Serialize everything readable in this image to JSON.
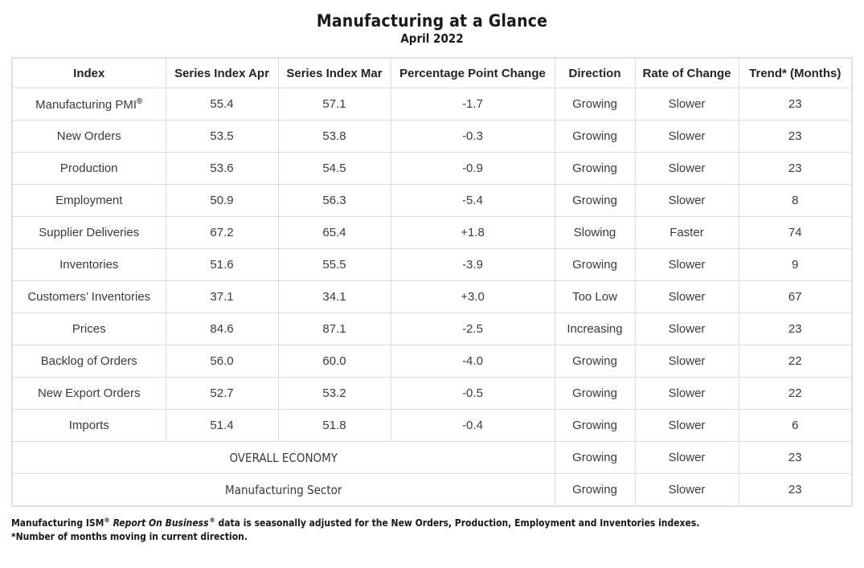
{
  "title": "Manufacturing at a Glance",
  "subtitle": "April 2022",
  "table": {
    "columns": [
      "Index",
      "Series Index Apr",
      "Series Index Mar",
      "Percentage Point Change",
      "Direction",
      "Rate of Change",
      "Trend* (Months)"
    ],
    "rows": [
      {
        "label": "Manufacturing PMI",
        "suffix": "®",
        "apr": "55.4",
        "mar": "57.1",
        "change": "-1.7",
        "direction": "Growing",
        "rate": "Slower",
        "trend": "23"
      },
      {
        "label": "New Orders",
        "suffix": "",
        "apr": "53.5",
        "mar": "53.8",
        "change": "-0.3",
        "direction": "Growing",
        "rate": "Slower",
        "trend": "23"
      },
      {
        "label": "Production",
        "suffix": "",
        "apr": "53.6",
        "mar": "54.5",
        "change": "-0.9",
        "direction": "Growing",
        "rate": "Slower",
        "trend": "23"
      },
      {
        "label": "Employment",
        "suffix": "",
        "apr": "50.9",
        "mar": "56.3",
        "change": "-5.4",
        "direction": "Growing",
        "rate": "Slower",
        "trend": "8"
      },
      {
        "label": "Supplier Deliveries",
        "suffix": "",
        "apr": "67.2",
        "mar": "65.4",
        "change": "+1.8",
        "direction": "Slowing",
        "rate": "Faster",
        "trend": "74"
      },
      {
        "label": "Inventories",
        "suffix": "",
        "apr": "51.6",
        "mar": "55.5",
        "change": "-3.9",
        "direction": "Growing",
        "rate": "Slower",
        "trend": "9"
      },
      {
        "label": "Customers’ Inventories",
        "suffix": "",
        "apr": "37.1",
        "mar": "34.1",
        "change": "+3.0",
        "direction": "Too Low",
        "rate": "Slower",
        "trend": "67"
      },
      {
        "label": "Prices",
        "suffix": "",
        "apr": "84.6",
        "mar": "87.1",
        "change": "-2.5",
        "direction": "Increasing",
        "rate": "Slower",
        "trend": "23"
      },
      {
        "label": "Backlog of Orders",
        "suffix": "",
        "apr": "56.0",
        "mar": "60.0",
        "change": "-4.0",
        "direction": "Growing",
        "rate": "Slower",
        "trend": "22"
      },
      {
        "label": "New Export Orders",
        "suffix": "",
        "apr": "52.7",
        "mar": "53.2",
        "change": "-0.5",
        "direction": "Growing",
        "rate": "Slower",
        "trend": "22"
      },
      {
        "label": "Imports",
        "suffix": "",
        "apr": "51.4",
        "mar": "51.8",
        "change": "-0.4",
        "direction": "Growing",
        "rate": "Slower",
        "trend": "6"
      }
    ],
    "summary_rows": [
      {
        "label": "OVERALL ECONOMY",
        "direction": "Growing",
        "rate": "Slower",
        "trend": "23"
      },
      {
        "label": "Manufacturing Sector",
        "direction": "Growing",
        "rate": "Slower",
        "trend": "23"
      }
    ]
  },
  "footnote": {
    "line1_prefix": "Manufacturing ISM",
    "line1_reg1": "®",
    "line1_italic": "Report On Business",
    "line1_reg2": "®",
    "line1_rest": " data is seasonally adjusted for the New Orders, Production, Employment and Inventories indexes.",
    "line2": "*Number of months moving in current direction."
  },
  "colors": {
    "border_inner": "#d9dce3",
    "border_outer": "#dfe1e8",
    "text_dark": "#17191e",
    "text_body": "#363b42",
    "background": "#ffffff"
  },
  "chart_data": {
    "type": "table",
    "title": "Manufacturing at a Glance",
    "subtitle": "April 2022",
    "columns": [
      "Index",
      "Series Index Apr",
      "Series Index Mar",
      "Percentage Point Change",
      "Direction",
      "Rate of Change",
      "Trend* (Months)"
    ],
    "rows": [
      [
        "Manufacturing PMI®",
        55.4,
        57.1,
        -1.7,
        "Growing",
        "Slower",
        23
      ],
      [
        "New Orders",
        53.5,
        53.8,
        -0.3,
        "Growing",
        "Slower",
        23
      ],
      [
        "Production",
        53.6,
        54.5,
        -0.9,
        "Growing",
        "Slower",
        23
      ],
      [
        "Employment",
        50.9,
        56.3,
        -5.4,
        "Growing",
        "Slower",
        8
      ],
      [
        "Supplier Deliveries",
        67.2,
        65.4,
        1.8,
        "Slowing",
        "Faster",
        74
      ],
      [
        "Inventories",
        51.6,
        55.5,
        -3.9,
        "Growing",
        "Slower",
        9
      ],
      [
        "Customers’ Inventories",
        37.1,
        34.1,
        3.0,
        "Too Low",
        "Slower",
        67
      ],
      [
        "Prices",
        84.6,
        87.1,
        -2.5,
        "Increasing",
        "Slower",
        23
      ],
      [
        "Backlog of Orders",
        56.0,
        60.0,
        -4.0,
        "Growing",
        "Slower",
        22
      ],
      [
        "New Export Orders",
        52.7,
        53.2,
        -0.5,
        "Growing",
        "Slower",
        22
      ],
      [
        "Imports",
        51.4,
        51.8,
        -0.4,
        "Growing",
        "Slower",
        6
      ]
    ],
    "summary_rows": [
      [
        "OVERALL ECONOMY",
        "Growing",
        "Slower",
        23
      ],
      [
        "Manufacturing Sector",
        "Growing",
        "Slower",
        23
      ]
    ]
  }
}
